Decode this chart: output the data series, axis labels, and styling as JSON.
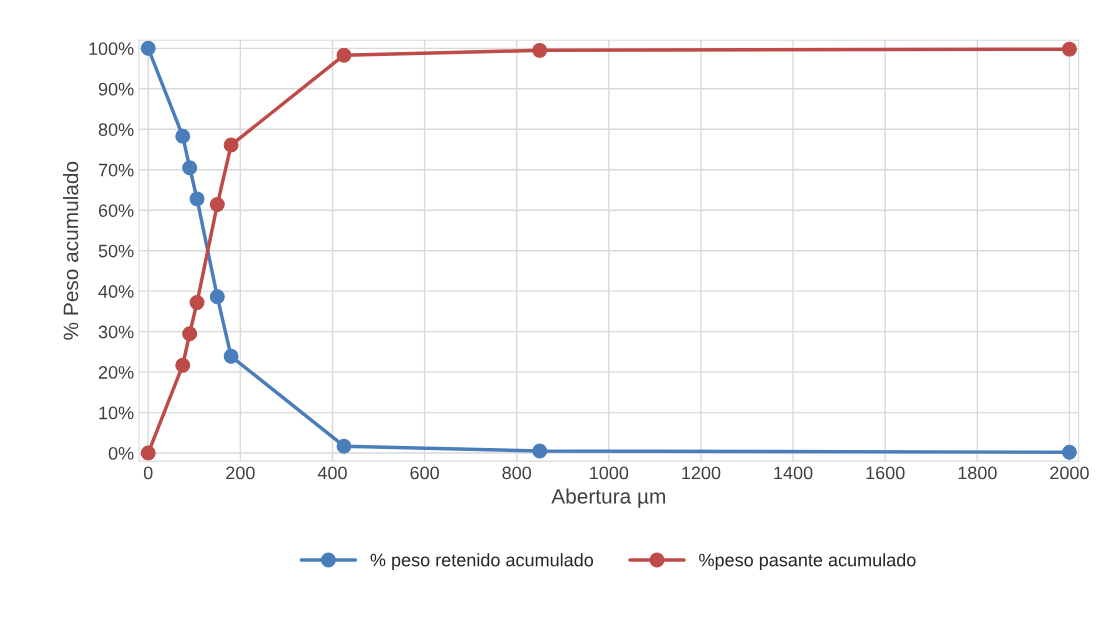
{
  "chart_data": {
    "type": "line",
    "xlabel": "Abertura µm",
    "ylabel": "% Peso acumulado",
    "x": [
      0,
      75,
      90,
      106,
      150,
      180,
      425,
      850,
      2000
    ],
    "series": [
      {
        "name": "% peso retenido acumulado",
        "color": "#4a7ebb",
        "values": [
          100,
          78.3,
          70.5,
          62.8,
          38.6,
          23.9,
          1.7,
          0.5,
          0.2
        ]
      },
      {
        "name": "%peso pasante acumulado",
        "color": "#be4b48",
        "values": [
          0,
          21.7,
          29.5,
          37.2,
          61.4,
          76.1,
          98.3,
          99.5,
          99.8
        ]
      }
    ],
    "xlim": [
      -20,
      2020
    ],
    "xticks": [
      0,
      200,
      400,
      600,
      800,
      1000,
      1200,
      1400,
      1600,
      1800,
      2000
    ],
    "ylim": [
      -2,
      102
    ],
    "yticks": [
      {
        "value": 0,
        "label": "0%"
      },
      {
        "value": 10,
        "label": "10%"
      },
      {
        "value": 20,
        "label": "20%"
      },
      {
        "value": 30,
        "label": "30%"
      },
      {
        "value": 40,
        "label": "40%"
      },
      {
        "value": 50,
        "label": "50%"
      },
      {
        "value": 60,
        "label": "60%"
      },
      {
        "value": 70,
        "label": "70%"
      },
      {
        "value": 80,
        "label": "80%"
      },
      {
        "value": 90,
        "label": "90%"
      },
      {
        "value": 100,
        "label": "100%"
      }
    ],
    "grid": true,
    "legend": "bottom",
    "marker": "circle",
    "line_style": "solid"
  }
}
